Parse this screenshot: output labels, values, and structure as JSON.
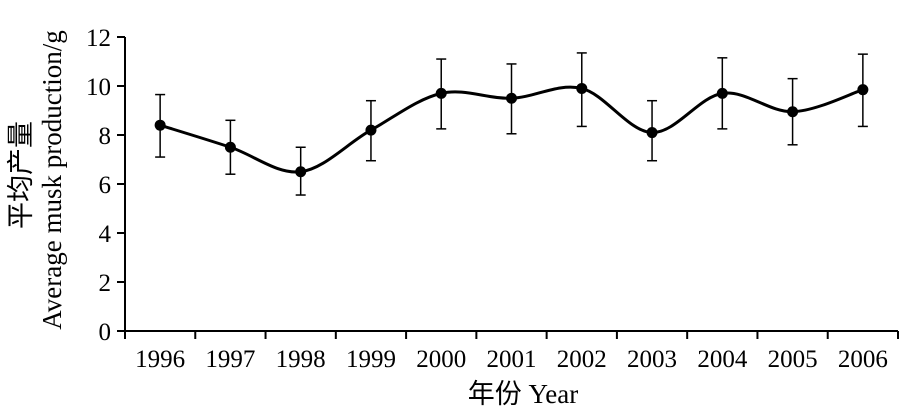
{
  "chart_data": {
    "type": "line",
    "xlabel": "年份  Year",
    "ylabel_cn": "平均产量",
    "ylabel_en": "Average musk production/g",
    "ylim": [
      0,
      12
    ],
    "yticks": [
      0,
      2,
      4,
      6,
      8,
      10,
      12
    ],
    "categories": [
      "1996",
      "1997",
      "1998",
      "1999",
      "2000",
      "2001",
      "2002",
      "2003",
      "2004",
      "2005",
      "2006"
    ],
    "series": [
      {
        "values": [
          8.4,
          7.5,
          6.5,
          8.2,
          9.7,
          9.5,
          9.9,
          8.1,
          9.7,
          8.95,
          9.85
        ],
        "error_upper": [
          9.65,
          8.6,
          7.5,
          9.4,
          11.1,
          10.9,
          11.35,
          9.4,
          11.15,
          10.3,
          11.3
        ],
        "error_lower": [
          7.1,
          6.4,
          5.55,
          6.95,
          8.25,
          8.05,
          8.35,
          6.95,
          8.25,
          7.6,
          8.35
        ]
      }
    ],
    "line_color": "#000000",
    "smooth": true,
    "grid": false
  }
}
